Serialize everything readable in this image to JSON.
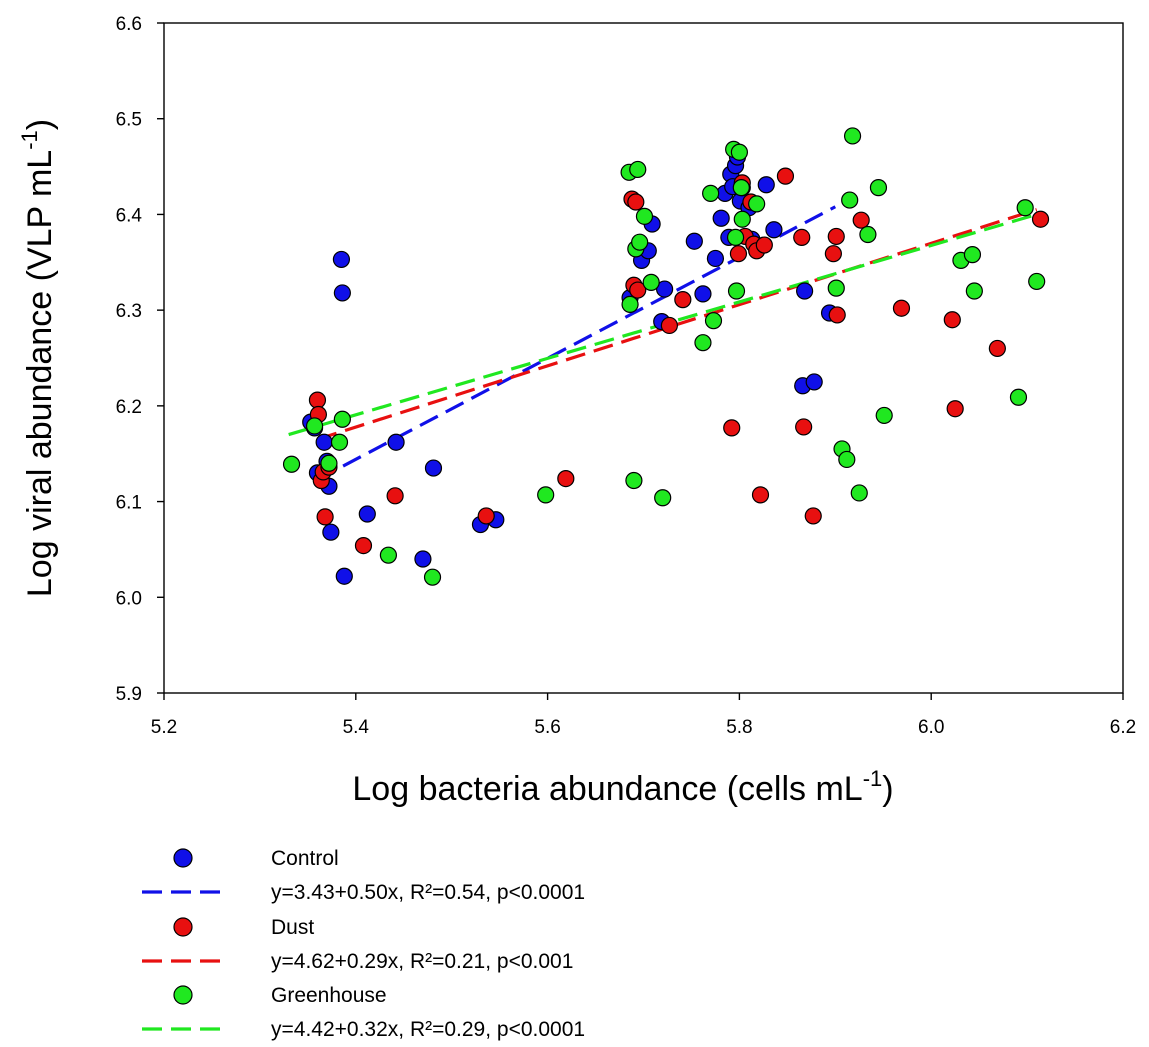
{
  "chart_data": {
    "type": "scatter",
    "xlabel": "Log bacteria abundance (cells mL",
    "xlabel_sup": "-1",
    "xlabel_end": ")",
    "ylabel": "Log viral abundance (VLP mL",
    "ylabel_sup": "-1",
    "ylabel_end": ")",
    "xlim": [
      5.2,
      6.2
    ],
    "ylim": [
      5.9,
      6.6
    ],
    "xticks": [
      "5.2",
      "5.4",
      "5.6",
      "5.8",
      "6.0",
      "6.2"
    ],
    "yticks": [
      "5.9",
      "6.0",
      "6.1",
      "6.2",
      "6.3",
      "6.4",
      "6.5",
      "6.6"
    ],
    "grid": false,
    "legend_position": "bottom",
    "series": [
      {
        "name": "Control",
        "color": "#1010e8",
        "points": [
          [
            5.353,
            6.183
          ],
          [
            5.357,
            6.177
          ],
          [
            5.36,
            6.13
          ],
          [
            5.367,
            6.162
          ],
          [
            5.37,
            6.142
          ],
          [
            5.372,
            6.116
          ],
          [
            5.374,
            6.068
          ],
          [
            5.385,
            6.353
          ],
          [
            5.386,
            6.318
          ],
          [
            5.388,
            6.022
          ],
          [
            5.412,
            6.087
          ],
          [
            5.442,
            6.162
          ],
          [
            5.47,
            6.04
          ],
          [
            5.481,
            6.135
          ],
          [
            5.53,
            6.076
          ],
          [
            5.546,
            6.081
          ],
          [
            5.686,
            6.313
          ],
          [
            5.698,
            6.352
          ],
          [
            5.705,
            6.362
          ],
          [
            5.709,
            6.39
          ],
          [
            5.719,
            6.288
          ],
          [
            5.722,
            6.322
          ],
          [
            5.753,
            6.372
          ],
          [
            5.762,
            6.317
          ],
          [
            5.775,
            6.354
          ],
          [
            5.781,
            6.396
          ],
          [
            5.785,
            6.422
          ],
          [
            5.789,
            6.376
          ],
          [
            5.791,
            6.442
          ],
          [
            5.793,
            6.429
          ],
          [
            5.796,
            6.451
          ],
          [
            5.798,
            6.46
          ],
          [
            5.801,
            6.414
          ],
          [
            5.803,
            6.428
          ],
          [
            5.81,
            6.407
          ],
          [
            5.813,
            6.374
          ],
          [
            5.828,
            6.431
          ],
          [
            5.836,
            6.384
          ],
          [
            5.866,
            6.221
          ],
          [
            5.868,
            6.32
          ],
          [
            5.878,
            6.225
          ],
          [
            5.894,
            6.297
          ]
        ]
      },
      {
        "name": "Dust",
        "color": "#e81010",
        "points": [
          [
            5.36,
            6.206
          ],
          [
            5.361,
            6.191
          ],
          [
            5.364,
            6.122
          ],
          [
            5.366,
            6.131
          ],
          [
            5.368,
            6.084
          ],
          [
            5.372,
            6.136
          ],
          [
            5.408,
            6.054
          ],
          [
            5.441,
            6.106
          ],
          [
            5.536,
            6.085
          ],
          [
            5.619,
            6.124
          ],
          [
            5.688,
            6.416
          ],
          [
            5.69,
            6.326
          ],
          [
            5.692,
            6.413
          ],
          [
            5.694,
            6.321
          ],
          [
            5.727,
            6.284
          ],
          [
            5.741,
            6.311
          ],
          [
            5.792,
            6.177
          ],
          [
            5.799,
            6.359
          ],
          [
            5.803,
            6.433
          ],
          [
            5.806,
            6.377
          ],
          [
            5.812,
            6.413
          ],
          [
            5.815,
            6.369
          ],
          [
            5.818,
            6.362
          ],
          [
            5.822,
            6.107
          ],
          [
            5.826,
            6.368
          ],
          [
            5.848,
            6.44
          ],
          [
            5.865,
            6.376
          ],
          [
            5.867,
            6.178
          ],
          [
            5.877,
            6.085
          ],
          [
            5.898,
            6.359
          ],
          [
            5.901,
            6.377
          ],
          [
            5.902,
            6.295
          ],
          [
            5.927,
            6.394
          ],
          [
            5.969,
            6.302
          ],
          [
            6.022,
            6.29
          ],
          [
            6.025,
            6.197
          ],
          [
            6.069,
            6.26
          ],
          [
            6.114,
            6.395
          ]
        ]
      },
      {
        "name": "Greenhouse",
        "color": "#20e820",
        "points": [
          [
            5.333,
            6.139
          ],
          [
            5.357,
            6.179
          ],
          [
            5.372,
            6.14
          ],
          [
            5.383,
            6.162
          ],
          [
            5.386,
            6.186
          ],
          [
            5.434,
            6.044
          ],
          [
            5.48,
            6.021
          ],
          [
            5.598,
            6.107
          ],
          [
            5.685,
            6.444
          ],
          [
            5.686,
            6.306
          ],
          [
            5.69,
            6.122
          ],
          [
            5.692,
            6.364
          ],
          [
            5.694,
            6.447
          ],
          [
            5.696,
            6.371
          ],
          [
            5.701,
            6.398
          ],
          [
            5.708,
            6.329
          ],
          [
            5.72,
            6.104
          ],
          [
            5.762,
            6.266
          ],
          [
            5.77,
            6.422
          ],
          [
            5.773,
            6.289
          ],
          [
            5.794,
            6.468
          ],
          [
            5.796,
            6.376
          ],
          [
            5.797,
            6.32
          ],
          [
            5.8,
            6.465
          ],
          [
            5.802,
            6.428
          ],
          [
            5.803,
            6.395
          ],
          [
            5.818,
            6.411
          ],
          [
            5.901,
            6.323
          ],
          [
            5.907,
            6.155
          ],
          [
            5.912,
            6.144
          ],
          [
            5.915,
            6.415
          ],
          [
            5.918,
            6.482
          ],
          [
            5.925,
            6.109
          ],
          [
            5.934,
            6.379
          ],
          [
            5.945,
            6.428
          ],
          [
            5.951,
            6.19
          ],
          [
            6.031,
            6.352
          ],
          [
            6.043,
            6.358
          ],
          [
            6.045,
            6.32
          ],
          [
            6.091,
            6.209
          ],
          [
            6.098,
            6.407
          ],
          [
            6.11,
            6.33
          ]
        ]
      }
    ],
    "regression_lines": [
      {
        "name": "y=3.43+0.50x, R²=0.54, p<0.0001",
        "series": "Control",
        "color": "#1010e8",
        "x": [
          5.36,
          5.9
        ],
        "y": [
          6.123,
          6.408
        ]
      },
      {
        "name": "y=4.62+0.29x, R²=0.21, p<0.001",
        "series": "Dust",
        "color": "#e81010",
        "x": [
          5.36,
          6.11
        ],
        "y": [
          6.165,
          6.405
        ]
      },
      {
        "name": "y=4.42+0.32x, R²=0.29, p<0.0001",
        "series": "Greenhouse",
        "color": "#20e820",
        "x": [
          5.33,
          6.11
        ],
        "y": [
          6.17,
          6.4
        ]
      }
    ]
  },
  "legend": {
    "items": [
      {
        "kind": "marker",
        "label": "Control",
        "color": "#1010e8"
      },
      {
        "kind": "line",
        "label": "y=3.43+0.50x, R²=0.54, p<0.0001",
        "color": "#1010e8"
      },
      {
        "kind": "marker",
        "label": "Dust",
        "color": "#e81010"
      },
      {
        "kind": "line",
        "label": "y=4.62+0.29x, R²=0.21, p<0.001",
        "color": "#e81010"
      },
      {
        "kind": "marker",
        "label": "Greenhouse",
        "color": "#20e820"
      },
      {
        "kind": "line",
        "label": "y=4.42+0.32x, R²=0.29, p<0.0001",
        "color": "#20e820"
      }
    ]
  }
}
